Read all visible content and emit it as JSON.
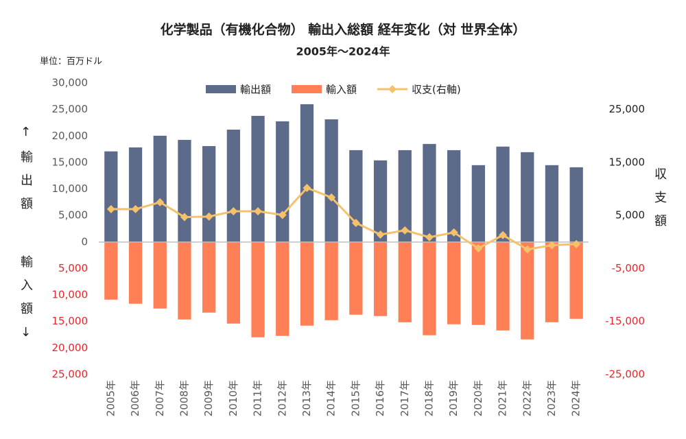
{
  "chart_data": {
    "type": "bar",
    "title": "化学製品（有機化合物） 輸出入総額 経年変化（対 世界全体）",
    "subtitle": "2005年～2024年",
    "unit_label": "単位：百万ドル",
    "y_label_top": "↑輸出額",
    "y_label_bottom": "輸入額↓",
    "y2_label": "収支額",
    "categories": [
      "2005年",
      "2006年",
      "2007年",
      "2008年",
      "2009年",
      "2010年",
      "2011年",
      "2012年",
      "2013年",
      "2014年",
      "2015年",
      "2016年",
      "2017年",
      "2018年",
      "2019年",
      "2020年",
      "2021年",
      "2022年",
      "2023年",
      "2024年"
    ],
    "series": [
      {
        "name": "輸出額",
        "color": "#5d6b8a",
        "values": [
          17100,
          17850,
          20050,
          19270,
          18100,
          21200,
          23800,
          22770,
          26000,
          23150,
          17330,
          15400,
          17330,
          18500,
          17330,
          14500,
          18000,
          16950,
          14500,
          14100
        ]
      },
      {
        "name": "輸入額",
        "color": "#ff7f57",
        "values": [
          -10870,
          -11640,
          -12550,
          -14620,
          -13320,
          -15390,
          -17980,
          -17720,
          -15780,
          -14750,
          -13710,
          -13970,
          -15140,
          -17590,
          -15520,
          -15650,
          -16690,
          -18370,
          -15140,
          -14490
        ]
      },
      {
        "name": "収支(右軸)",
        "color": "#f5c26b",
        "axis": "y2",
        "type": "line",
        "values": [
          6200,
          6200,
          7500,
          4700,
          4800,
          5800,
          5800,
          5100,
          10200,
          8400,
          3600,
          1400,
          2200,
          900,
          1800,
          -1200,
          1300,
          -1400,
          -600,
          -400
        ]
      }
    ],
    "ylim": [
      -25000,
      30000
    ],
    "yticks": [
      {
        "value": 30000,
        "label": "30,000"
      },
      {
        "value": 25000,
        "label": "25,000"
      },
      {
        "value": 20000,
        "label": "20,000"
      },
      {
        "value": 15000,
        "label": "15,000"
      },
      {
        "value": 10000,
        "label": "10,000"
      },
      {
        "value": 5000,
        "label": "5,000"
      },
      0,
      {
        "value": -5000,
        "label": "5,000"
      },
      {
        "value": -10000,
        "label": "10,000"
      },
      {
        "value": -15000,
        "label": "15,000"
      },
      {
        "value": -20000,
        "label": "20,000"
      },
      {
        "value": -25000,
        "label": "25,000"
      }
    ],
    "y2lim": [
      -25000,
      30000
    ],
    "y2ticks": [
      {
        "value": 25000,
        "label": "25,000"
      },
      {
        "value": 15000,
        "label": "15,000"
      },
      {
        "value": 5000,
        "label": "5,000"
      },
      {
        "value": -5000,
        "label": "-5,000"
      },
      {
        "value": -15000,
        "label": "-15,000"
      },
      {
        "value": -25000,
        "label": "-25,000"
      }
    ],
    "grid": false,
    "legend": "top"
  }
}
